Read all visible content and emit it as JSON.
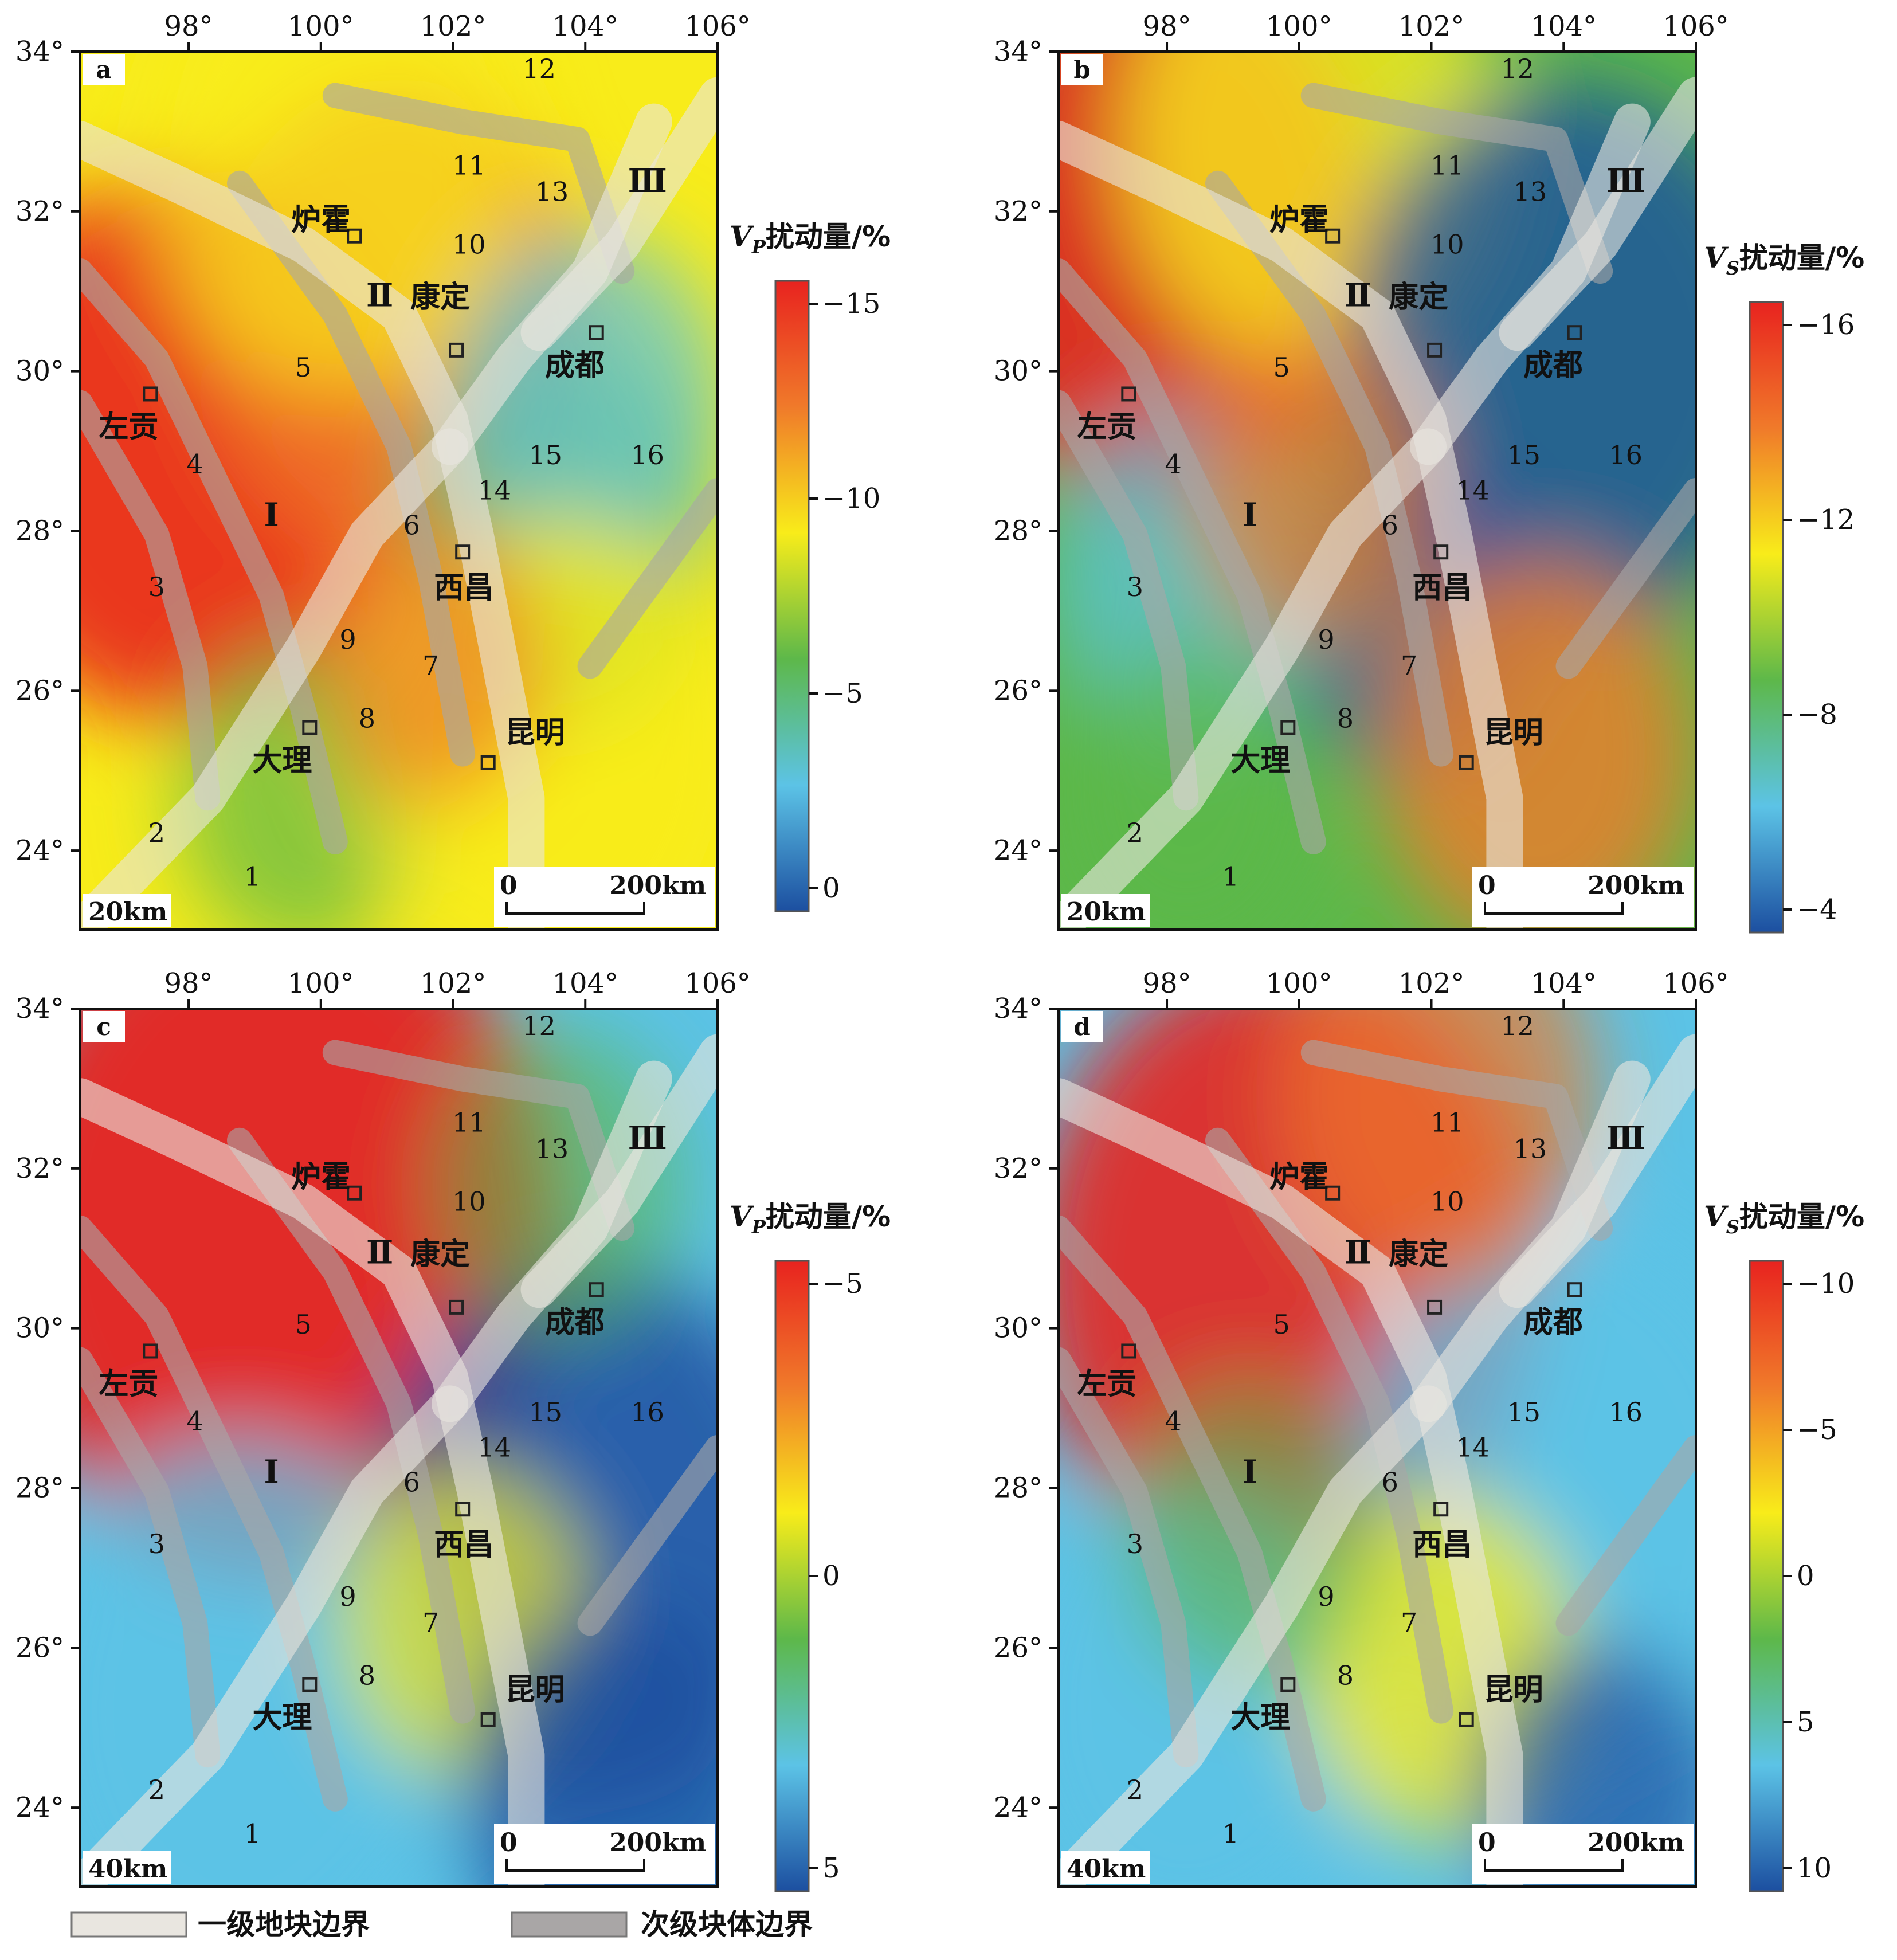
{
  "panels": [
    {
      "id": "a",
      "depth": "20km",
      "var": "V",
      "sub": "P",
      "cb_suffix": "扰动量/%",
      "cb_ticks": [
        "−15",
        "−10",
        "−5",
        "0"
      ],
      "rotate": 0
    },
    {
      "id": "b",
      "depth": "20km",
      "var": "V",
      "sub": "S",
      "cb_suffix": "扰动量/%",
      "cb_ticks": [
        "−16",
        "−12",
        "−8",
        "−4"
      ],
      "rotate": 1
    },
    {
      "id": "c",
      "depth": "40km",
      "var": "V",
      "sub": "P",
      "cb_suffix": "扰动量/%",
      "cb_ticks": [
        "−5",
        "0",
        "5"
      ],
      "rotate": 2
    },
    {
      "id": "d",
      "depth": "40km",
      "var": "V",
      "sub": "S",
      "cb_suffix": "扰动量/%",
      "cb_ticks": [
        "−10",
        "−5",
        "0",
        "5",
        "10"
      ],
      "rotate": 3
    }
  ],
  "lon_ticks": [
    "98°",
    "100°",
    "102°",
    "104°",
    "106°"
  ],
  "lat_ticks": [
    "34°",
    "32°",
    "30°",
    "28°",
    "26°",
    "24°"
  ],
  "cities": [
    "炉霍",
    "康定",
    "成都",
    "左贡",
    "西昌",
    "大理",
    "昆明"
  ],
  "block_labels": [
    "Ⅰ",
    "Ⅱ",
    "Ⅲ"
  ],
  "fault_numbers": [
    "1",
    "2",
    "3",
    "4",
    "5",
    "6",
    "7",
    "8",
    "9",
    "10",
    "11",
    "12",
    "13",
    "14",
    "15",
    "16"
  ],
  "scale_bar": {
    "start": "0",
    "end": "200km"
  },
  "legend": {
    "primary": "一级地块边界",
    "secondary": "次级块体边界"
  },
  "colors": {
    "red": "#e8231f",
    "orange": "#f07a2a",
    "yellow": "#f8ec1a",
    "green": "#5db84a",
    "cyan": "#5cc3e6",
    "blue": "#1c4fa0",
    "primary_boundary": "#e9e6e0",
    "secondary_boundary": "#a9a6a6"
  }
}
